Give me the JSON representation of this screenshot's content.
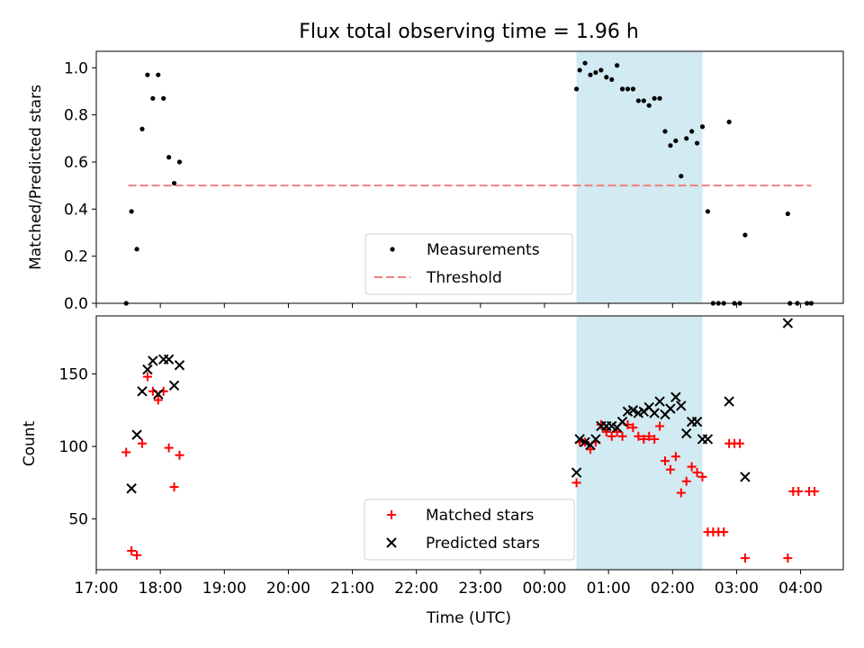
{
  "title": "Flux total observing time = 1.96 h",
  "xlabel": "Time (UTC)",
  "x_ticks": [
    "17:00",
    "18:00",
    "19:00",
    "20:00",
    "21:00",
    "22:00",
    "23:00",
    "00:00",
    "01:00",
    "02:00",
    "03:00",
    "04:00"
  ],
  "chart_data": [
    {
      "type": "scatter",
      "ylabel": "Matched/Predicted stars",
      "xlim": [
        "17:00",
        "04:40"
      ],
      "ylim": [
        0,
        1.07
      ],
      "y_ticks": [
        "0.0",
        "0.2",
        "0.4",
        "0.6",
        "0.8",
        "1.0"
      ],
      "highlight": {
        "x_start": "00:30",
        "x_end": "02:28",
        "color": "#add8e6"
      },
      "legend": {
        "position": "lower-center",
        "entries": [
          "Measurements",
          "Threshold"
        ]
      },
      "threshold": {
        "name": "Threshold",
        "value": 0.5,
        "x_start": "17:30",
        "x_end": "04:10",
        "color": "#f08080"
      },
      "series": [
        {
          "name": "Measurements",
          "marker": "dot",
          "color": "#000000",
          "points": [
            [
              "17:28",
              0.0
            ],
            [
              "17:33",
              0.39
            ],
            [
              "17:38",
              0.23
            ],
            [
              "17:43",
              0.74
            ],
            [
              "17:48",
              0.97
            ],
            [
              "17:53",
              0.87
            ],
            [
              "17:58",
              0.97
            ],
            [
              "18:03",
              0.87
            ],
            [
              "18:08",
              0.62
            ],
            [
              "18:13",
              0.51
            ],
            [
              "18:18",
              0.6
            ],
            [
              "00:30",
              0.91
            ],
            [
              "00:33",
              0.99
            ],
            [
              "00:38",
              1.02
            ],
            [
              "00:43",
              0.97
            ],
            [
              "00:48",
              0.98
            ],
            [
              "00:53",
              0.99
            ],
            [
              "00:58",
              0.96
            ],
            [
              "01:03",
              0.95
            ],
            [
              "01:08",
              1.01
            ],
            [
              "01:13",
              0.91
            ],
            [
              "01:18",
              0.91
            ],
            [
              "01:23",
              0.91
            ],
            [
              "01:28",
              0.86
            ],
            [
              "01:33",
              0.86
            ],
            [
              "01:38",
              0.84
            ],
            [
              "01:43",
              0.87
            ],
            [
              "01:48",
              0.87
            ],
            [
              "01:53",
              0.73
            ],
            [
              "01:58",
              0.67
            ],
            [
              "02:03",
              0.69
            ],
            [
              "02:08",
              0.54
            ],
            [
              "02:13",
              0.7
            ],
            [
              "02:18",
              0.73
            ],
            [
              "02:23",
              0.68
            ],
            [
              "02:28",
              0.75
            ],
            [
              "02:33",
              0.39
            ],
            [
              "02:38",
              0.0
            ],
            [
              "02:43",
              0.0
            ],
            [
              "02:48",
              0.0
            ],
            [
              "02:53",
              0.77
            ],
            [
              "02:58",
              0.0
            ],
            [
              "03:03",
              0.0
            ],
            [
              "03:08",
              0.29
            ],
            [
              "03:48",
              0.38
            ],
            [
              "03:50",
              0.0
            ],
            [
              "03:57",
              0.0
            ],
            [
              "04:06",
              0.0
            ],
            [
              "04:10",
              0.0
            ]
          ]
        }
      ]
    },
    {
      "type": "scatter",
      "ylabel": "Count",
      "xlim": [
        "17:00",
        "04:40"
      ],
      "ylim": [
        15,
        190
      ],
      "y_ticks": [
        "50",
        "100",
        "150"
      ],
      "highlight": {
        "x_start": "00:30",
        "x_end": "02:28",
        "color": "#add8e6"
      },
      "legend": {
        "position": "lower-center",
        "entries": [
          "Matched stars",
          "Predicted stars"
        ]
      },
      "series": [
        {
          "name": "Matched stars",
          "marker": "plus",
          "color": "#ff0000",
          "points": [
            [
              "17:28",
              96
            ],
            [
              "17:33",
              28
            ],
            [
              "17:38",
              25
            ],
            [
              "17:43",
              102
            ],
            [
              "17:48",
              148
            ],
            [
              "17:53",
              138
            ],
            [
              "17:58",
              132
            ],
            [
              "18:03",
              138
            ],
            [
              "18:08",
              99
            ],
            [
              "18:13",
              72
            ],
            [
              "18:18",
              94
            ],
            [
              "00:30",
              75
            ],
            [
              "00:33",
              103
            ],
            [
              "00:38",
              103
            ],
            [
              "00:43",
              98
            ],
            [
              "00:48",
              103
            ],
            [
              "00:53",
              115
            ],
            [
              "00:58",
              110
            ],
            [
              "01:03",
              107
            ],
            [
              "01:08",
              110
            ],
            [
              "01:13",
              107
            ],
            [
              "01:18",
              115
            ],
            [
              "01:23",
              113
            ],
            [
              "01:28",
              107
            ],
            [
              "01:33",
              105
            ],
            [
              "01:38",
              107
            ],
            [
              "01:43",
              105
            ],
            [
              "01:48",
              114
            ],
            [
              "01:53",
              90
            ],
            [
              "01:58",
              84
            ],
            [
              "02:03",
              93
            ],
            [
              "02:08",
              68
            ],
            [
              "02:13",
              76
            ],
            [
              "02:18",
              86
            ],
            [
              "02:23",
              82
            ],
            [
              "02:28",
              79
            ],
            [
              "02:33",
              41
            ],
            [
              "02:38",
              41
            ],
            [
              "02:43",
              41
            ],
            [
              "02:48",
              41
            ],
            [
              "02:53",
              102
            ],
            [
              "02:58",
              102
            ],
            [
              "03:03",
              102
            ],
            [
              "03:08",
              23
            ],
            [
              "03:48",
              23
            ],
            [
              "03:53",
              69
            ],
            [
              "03:58",
              69
            ],
            [
              "04:08",
              69
            ],
            [
              "04:13",
              69
            ]
          ]
        },
        {
          "name": "Predicted stars",
          "marker": "x",
          "color": "#000000",
          "points": [
            [
              "17:33",
              71
            ],
            [
              "17:38",
              108
            ],
            [
              "17:43",
              138
            ],
            [
              "17:48",
              153
            ],
            [
              "17:53",
              159
            ],
            [
              "17:58",
              136
            ],
            [
              "18:03",
              160
            ],
            [
              "18:08",
              160
            ],
            [
              "18:13",
              142
            ],
            [
              "18:18",
              156
            ],
            [
              "00:30",
              82
            ],
            [
              "00:33",
              105
            ],
            [
              "00:38",
              103
            ],
            [
              "00:43",
              101
            ],
            [
              "00:48",
              105
            ],
            [
              "00:53",
              114
            ],
            [
              "00:58",
              114
            ],
            [
              "01:03",
              114
            ],
            [
              "01:08",
              113
            ],
            [
              "01:13",
              117
            ],
            [
              "01:18",
              124
            ],
            [
              "01:23",
              125
            ],
            [
              "01:28",
              123
            ],
            [
              "01:33",
              124
            ],
            [
              "01:38",
              127
            ],
            [
              "01:43",
              123
            ],
            [
              "01:48",
              131
            ],
            [
              "01:53",
              122
            ],
            [
              "01:58",
              126
            ],
            [
              "02:03",
              134
            ],
            [
              "02:08",
              128
            ],
            [
              "02:13",
              109
            ],
            [
              "02:18",
              117
            ],
            [
              "02:23",
              117
            ],
            [
              "02:28",
              105
            ],
            [
              "02:33",
              105
            ],
            [
              "02:53",
              131
            ],
            [
              "03:08",
              79
            ],
            [
              "03:48",
              185
            ]
          ]
        }
      ]
    }
  ]
}
